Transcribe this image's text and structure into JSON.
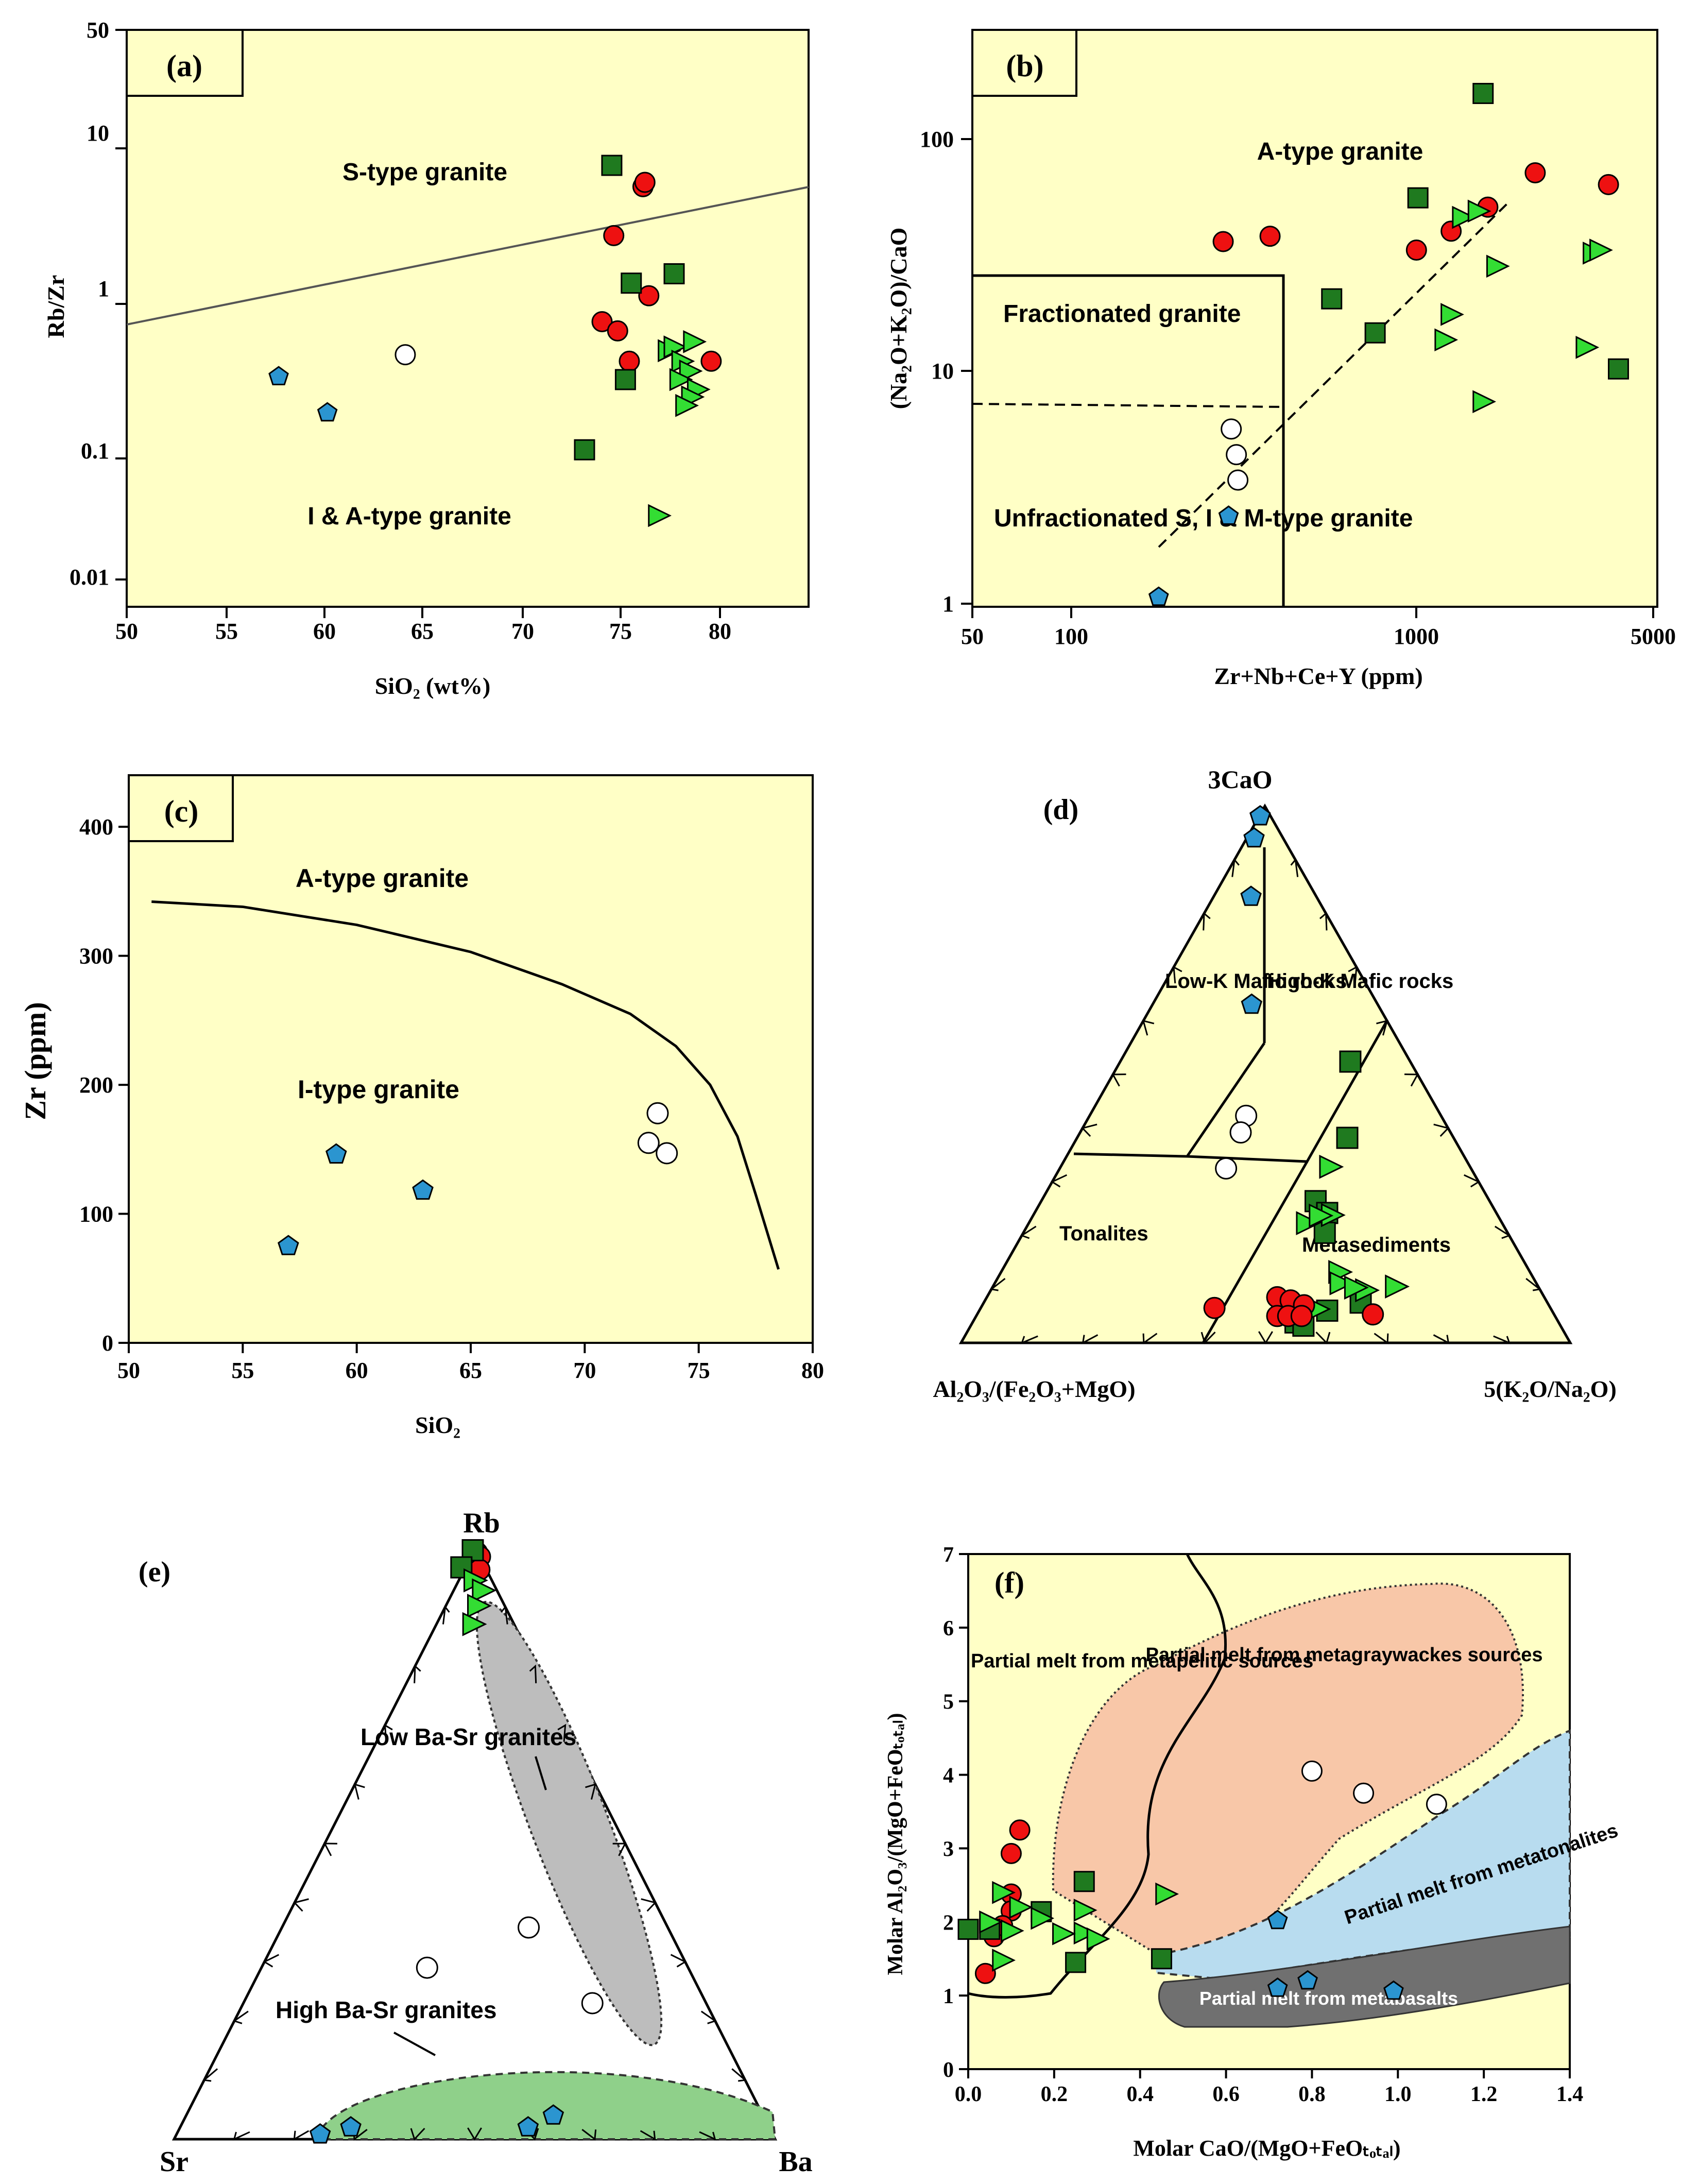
{
  "colors": {
    "background": "#ffffc6",
    "red": "#ee1111",
    "dark_green": "#1f7a1f",
    "light_green": "#33dd33",
    "blue": "#2b95d0",
    "white": "#ffffff",
    "salmon": "#f8c7a8",
    "light_blue": "#b8dcef",
    "dark_gray": "#707070",
    "gray": "#bdbdbd",
    "green_field": "#8fd08a"
  },
  "chart_data": [
    {
      "id": "a",
      "type": "scatter",
      "panel_label": "(a)",
      "xlabel": "SiO₂ (wt%)",
      "ylabel": "Rb/Zr",
      "xlim": [
        50,
        85
      ],
      "ylim": [
        0.006,
        50
      ],
      "yscale": "log",
      "x_ticks": [
        "50",
        "55",
        "60",
        "65",
        "70",
        "75",
        "80"
      ],
      "y_ticks": [
        "50",
        "10",
        "1",
        "0.1",
        "0.01"
      ],
      "regions": [
        "S-type granite",
        "I & A-type granite"
      ],
      "boundary": [
        [
          50,
          0.65
        ],
        [
          85,
          5.0
        ]
      ],
      "series": [
        {
          "name": "red",
          "points": [
            [
              76.5,
              4.3
            ],
            [
              76.6,
              4.6
            ],
            [
              75,
              2.0
            ],
            [
              74.4,
              0.52
            ],
            [
              75.2,
              0.45
            ],
            [
              76.8,
              0.78
            ],
            [
              75.8,
              0.28
            ],
            [
              80,
              0.28
            ]
          ]
        },
        {
          "name": "dark_green",
          "points": [
            [
              74.9,
              6.0
            ],
            [
              75.9,
              0.95
            ],
            [
              78.1,
              1.1
            ],
            [
              75.6,
              0.21
            ],
            [
              73.5,
              0.07
            ]
          ]
        },
        {
          "name": "light_green",
          "points": [
            [
              77.8,
              0.33
            ],
            [
              78.1,
              0.35
            ],
            [
              78.5,
              0.28
            ],
            [
              79.1,
              0.38
            ],
            [
              78.9,
              0.24
            ],
            [
              78.4,
              0.21
            ],
            [
              79.3,
              0.18
            ],
            [
              79,
              0.16
            ],
            [
              78.7,
              0.14
            ],
            [
              77.3,
              0.025
            ]
          ]
        },
        {
          "name": "blue",
          "points": [
            [
              57.8,
              0.22
            ],
            [
              60.3,
              0.125
            ]
          ]
        },
        {
          "name": "white",
          "points": [
            [
              64.3,
              0.31
            ]
          ]
        }
      ]
    },
    {
      "id": "b",
      "type": "scatter",
      "panel_label": "(b)",
      "xlabel": "Zr+Nb+Ce+Y (ppm)",
      "ylabel": "(Na₂O+K₂O)/CaO",
      "xlim": [
        50,
        5000
      ],
      "ylim": [
        1,
        300
      ],
      "xscale": "log",
      "yscale": "log",
      "x_ticks": [
        "50",
        "100",
        "1000",
        "5000"
      ],
      "y_ticks": [
        "100",
        "10",
        "1"
      ],
      "regions": [
        "A-type granite",
        "Fractionated granite",
        "Unfractionated S, I & M-type granite"
      ],
      "series": [
        {
          "name": "red",
          "points": [
            [
              2200,
              73
            ],
            [
              3600,
              65
            ],
            [
              1600,
              52
            ],
            [
              1250,
              41
            ],
            [
              990,
              34
            ],
            [
              370,
              39
            ],
            [
              270,
              37
            ]
          ]
        },
        {
          "name": "dark_green",
          "points": [
            [
              1550,
              160
            ],
            [
              1000,
              57
            ],
            [
              560,
              21
            ],
            [
              750,
              15
            ],
            [
              3850,
              10.5
            ]
          ]
        },
        {
          "name": "light_green",
          "points": [
            [
              1350,
              47
            ],
            [
              1500,
              50
            ],
            [
              1700,
              29
            ],
            [
              3250,
              33
            ],
            [
              3400,
              34
            ],
            [
              1250,
              18
            ],
            [
              1200,
              14
            ],
            [
              3100,
              13
            ],
            [
              1550,
              7.6
            ]
          ]
        },
        {
          "name": "blue",
          "points": [
            [
              280,
              2.45
            ],
            [
              175,
              1.1
            ]
          ]
        },
        {
          "name": "white",
          "points": [
            [
              285,
              5.8
            ],
            [
              295,
              4.5
            ],
            [
              298,
              3.5
            ]
          ]
        }
      ]
    },
    {
      "id": "c",
      "type": "scatter",
      "panel_label": "(c)",
      "xlabel": "SiO₂",
      "ylabel": "Zr (ppm)",
      "xlim": [
        50,
        80
      ],
      "ylim": [
        0,
        440
      ],
      "x_ticks": [
        "50",
        "55",
        "60",
        "65",
        "70",
        "75",
        "80"
      ],
      "y_ticks": [
        "0",
        "100",
        "200",
        "300",
        "400"
      ],
      "regions": [
        "A-type granite",
        "I-type granite"
      ],
      "boundary": [
        [
          51,
          342
        ],
        [
          55,
          338
        ],
        [
          60,
          324
        ],
        [
          65,
          303
        ],
        [
          69,
          278
        ],
        [
          72,
          255
        ],
        [
          74,
          230
        ],
        [
          75.5,
          200
        ],
        [
          76.7,
          160
        ],
        [
          77.5,
          115
        ],
        [
          78.5,
          57
        ]
      ],
      "series": [
        {
          "name": "blue",
          "points": [
            [
              57,
              75
            ],
            [
              59.1,
              146
            ],
            [
              62.9,
              118
            ]
          ]
        },
        {
          "name": "white",
          "points": [
            [
              73.2,
              178
            ],
            [
              72.8,
              155
            ],
            [
              73.6,
              147
            ]
          ]
        }
      ]
    },
    {
      "id": "d",
      "type": "scatter",
      "panel_label": "(d)",
      "ternary": true,
      "apex_labels": {
        "top": "3CaO",
        "left": "Al₂O₃/(Fe₂O₃+MgO)",
        "right": "5(K₂O/Na₂O)"
      },
      "regions": [
        "Low-K Mafic rocks",
        "High-K Mafic rocks",
        "Tonalites",
        "Metasediments"
      ],
      "series": [
        {
          "name": "blue",
          "points": [
            [
              0.491,
              0.981
            ],
            [
              0.481,
              0.94
            ],
            [
              0.476,
              0.831
            ],
            [
              0.477,
              0.63
            ]
          ]
        },
        {
          "name": "white",
          "points": [
            [
              0.468,
              0.423
            ],
            [
              0.459,
              0.392
            ],
            [
              0.435,
              0.325
            ]
          ]
        },
        {
          "name": "dark_green",
          "points": [
            [
              0.639,
              0.524
            ],
            [
              0.634,
              0.382
            ],
            [
              0.582,
              0.264
            ],
            [
              0.601,
              0.242
            ],
            [
              0.597,
              0.205
            ],
            [
              0.601,
              0.06
            ],
            [
              0.549,
              0.038
            ],
            [
              0.562,
              0.032
            ],
            [
              0.656,
              0.075
            ]
          ]
        },
        {
          "name": "light_green",
          "points": [
            [
              0.606,
              0.328
            ],
            [
              0.609,
              0.238
            ],
            [
              0.568,
              0.223
            ],
            [
              0.589,
              0.237
            ],
            [
              0.665,
              0.098
            ],
            [
              0.621,
              0.132
            ],
            [
              0.623,
              0.111
            ],
            [
              0.714,
              0.105
            ],
            [
              0.647,
              0.103
            ],
            [
              0.585,
              0.063
            ]
          ]
        },
        {
          "name": "red",
          "points": [
            [
              0.416,
              0.065
            ],
            [
              0.519,
              0.085
            ],
            [
              0.541,
              0.079
            ],
            [
              0.563,
              0.07
            ],
            [
              0.519,
              0.05
            ],
            [
              0.537,
              0.05
            ],
            [
              0.559,
              0.05
            ],
            [
              0.676,
              0.053
            ]
          ]
        }
      ]
    },
    {
      "id": "e",
      "type": "scatter",
      "panel_label": "(e)",
      "ternary": true,
      "apex_labels": {
        "top": "Rb",
        "left": "Sr",
        "right": "Ba"
      },
      "regions": [
        "Low Ba-Sr granites",
        "High Ba-Sr granites"
      ],
      "series": [
        {
          "name": "red",
          "points": [
            [
              0.504,
              0.992
            ],
            [
              0.509,
              0.985
            ],
            [
              0.5,
              0.97
            ],
            [
              0.508,
              0.963
            ]
          ]
        },
        {
          "name": "dark_green",
          "points": [
            [
              0.497,
              0.996
            ],
            [
              0.478,
              0.967
            ]
          ]
        },
        {
          "name": "light_green",
          "points": [
            [
              0.5,
              0.945
            ],
            [
              0.514,
              0.928
            ],
            [
              0.506,
              0.902
            ],
            [
              0.498,
              0.871
            ]
          ]
        },
        {
          "name": "white",
          "points": [
            [
              0.59,
              0.358
            ],
            [
              0.421,
              0.29
            ],
            [
              0.696,
              0.23
            ]
          ]
        },
        {
          "name": "blue",
          "points": [
            [
              0.243,
              0.008
            ],
            [
              0.294,
              0.02
            ],
            [
              0.589,
              0.02
            ],
            [
              0.631,
              0.04
            ]
          ]
        }
      ]
    },
    {
      "id": "f",
      "type": "scatter",
      "panel_label": "(f)",
      "xlabel": "Molar CaO/(MgO+FeOₜₒₜₐₗ)",
      "ylabel": "Molar Al₂O₃/(MgO+FeOₜₒₜₐₗ)",
      "xlim": [
        0,
        1.4
      ],
      "ylim": [
        0,
        7
      ],
      "x_ticks": [
        "0.0",
        "0.2",
        "0.4",
        "0.6",
        "0.8",
        "1.0",
        "1.2",
        "1.4"
      ],
      "y_ticks": [
        "0",
        "1",
        "2",
        "3",
        "4",
        "5",
        "6",
        "7"
      ],
      "regions": [
        "Partial melt from metapelitic sources",
        "Partial melt from metagraywackes sources",
        "Partial melt from metatonalites",
        "Partial melt from metabasalts"
      ],
      "series": [
        {
          "name": "red",
          "points": [
            [
              0.12,
              3.25
            ],
            [
              0.1,
              2.93
            ],
            [
              0.1,
              2.38
            ],
            [
              0.1,
              2.15
            ],
            [
              0.06,
              1.8
            ],
            [
              0.04,
              1.3
            ],
            [
              0.08,
              1.95
            ]
          ]
        },
        {
          "name": "dark_green",
          "points": [
            [
              0.27,
              2.55
            ],
            [
              0.25,
              1.45
            ],
            [
              0.0,
              1.9
            ],
            [
              0.05,
              1.9
            ],
            [
              0.17,
              2.14
            ],
            [
              0.45,
              1.5
            ]
          ]
        },
        {
          "name": "light_green",
          "points": [
            [
              0.08,
              2.4
            ],
            [
              0.12,
              2.2
            ],
            [
              0.1,
              1.88
            ],
            [
              0.17,
              2.05
            ],
            [
              0.27,
              2.16
            ],
            [
              0.27,
              1.85
            ],
            [
              0.3,
              1.77
            ],
            [
              0.22,
              1.84
            ],
            [
              0.05,
              2.0
            ],
            [
              0.46,
              2.38
            ],
            [
              0.08,
              1.48
            ]
          ]
        },
        {
          "name": "blue",
          "points": [
            [
              0.72,
              2.02
            ],
            [
              0.79,
              1.2
            ],
            [
              0.72,
              1.1
            ],
            [
              0.99,
              1.06
            ]
          ]
        },
        {
          "name": "white",
          "points": [
            [
              0.8,
              4.05
            ],
            [
              0.92,
              3.75
            ],
            [
              1.09,
              3.6
            ]
          ]
        }
      ]
    }
  ]
}
